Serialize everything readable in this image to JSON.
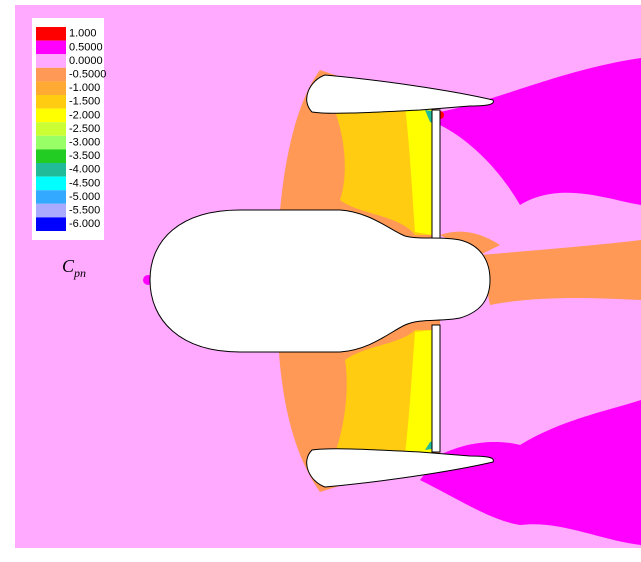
{
  "chart_data": {
    "type": "contour",
    "legend_title": {
      "base": "C",
      "subscript": "pn"
    },
    "levels": [
      {
        "value": 1,
        "label": "1.000"
      },
      {
        "value": 0.5,
        "label": "0.5000"
      },
      {
        "value": 0,
        "label": "0.0000"
      },
      {
        "value": -0.5,
        "label": "-0.5000"
      },
      {
        "value": -1,
        "label": "-1.000"
      },
      {
        "value": -1.5,
        "label": "-1.500"
      },
      {
        "value": -2,
        "label": "-2.000"
      },
      {
        "value": -2.5,
        "label": "-2.500"
      },
      {
        "value": -3,
        "label": "-3.000"
      },
      {
        "value": -3.5,
        "label": "-3.500"
      },
      {
        "value": -4,
        "label": "-4.000"
      },
      {
        "value": -4.5,
        "label": "-4.500"
      },
      {
        "value": -5,
        "label": "-5.000"
      },
      {
        "value": -5.5,
        "label": "-5.500"
      },
      {
        "value": -6,
        "label": "-6.000"
      }
    ],
    "colors": [
      "#ff0000",
      "#ff00ff",
      "#ffaaff",
      "#ff9955",
      "#ffaa33",
      "#ffcc11",
      "#ffff00",
      "#ccff33",
      "#99ff66",
      "#22cc22",
      "#22bb99",
      "#00ffff",
      "#33aaff",
      "#aaaaff",
      "#0000ff"
    ]
  }
}
